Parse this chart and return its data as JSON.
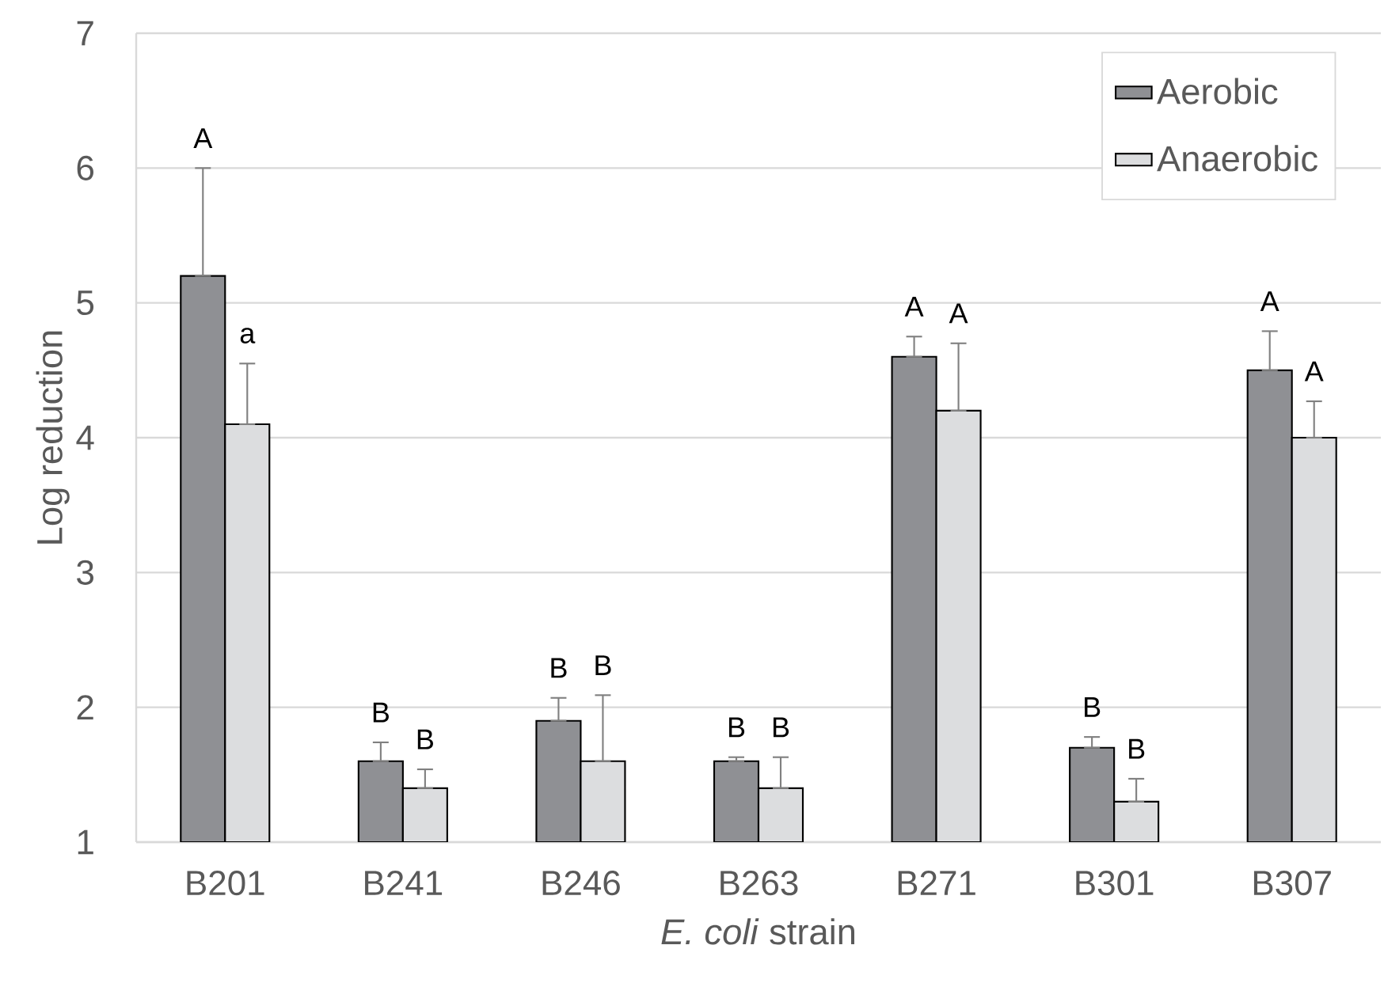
{
  "chart_data": {
    "type": "bar",
    "xlabel": "*E. coli* strain",
    "ylabel": "Log reduction",
    "categories": [
      "B201",
      "B241",
      "B246",
      "B263",
      "B271",
      "B301",
      "B307"
    ],
    "series": [
      {
        "name": "Aerobic",
        "color": "#8f9094",
        "values": [
          5.2,
          1.6,
          1.9,
          1.6,
          4.6,
          1.7,
          4.5
        ],
        "errors": [
          [
            5.2,
            6.0
          ],
          [
            1.6,
            1.74
          ],
          [
            1.9,
            2.07
          ],
          [
            1.6,
            1.63
          ],
          [
            4.6,
            4.75
          ],
          [
            1.7,
            1.78
          ],
          [
            4.5,
            4.79
          ]
        ]
      },
      {
        "name": "Anaerobic",
        "color": "#dcdddf",
        "values": [
          4.1,
          1.4,
          1.6,
          1.4,
          4.2,
          1.3,
          4.0
        ],
        "errors": [
          [
            4.1,
            4.55
          ],
          [
            1.4,
            1.54
          ],
          [
            1.6,
            2.09
          ],
          [
            1.4,
            1.63
          ],
          [
            4.2,
            4.7
          ],
          [
            1.3,
            1.47
          ],
          [
            4.0,
            4.27
          ]
        ]
      }
    ],
    "ylim": [
      1,
      7
    ],
    "yticks": [
      1,
      2,
      3,
      4,
      5,
      6,
      7
    ],
    "grid": "y",
    "legend": "top right",
    "annotations": [
      "A",
      "a",
      "B",
      "B",
      "B",
      "B",
      "B",
      "B",
      "A",
      "A",
      "B",
      "B",
      "A",
      "A"
    ]
  }
}
